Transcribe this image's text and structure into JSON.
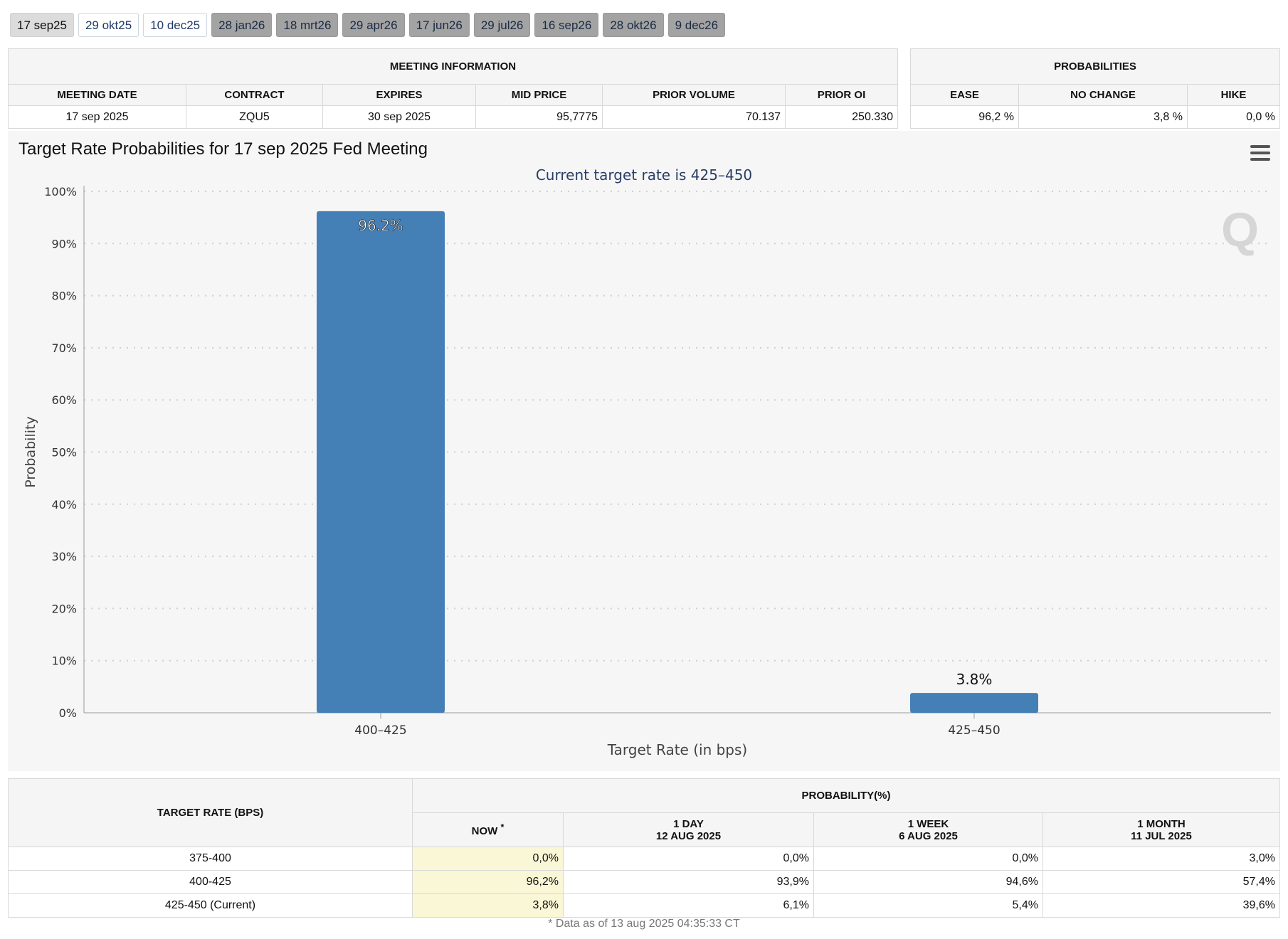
{
  "tabs": [
    {
      "label": "17 sep25",
      "style": "active"
    },
    {
      "label": "29 okt25",
      "style": "light"
    },
    {
      "label": "10 dec25",
      "style": "light"
    },
    {
      "label": "28 jan26",
      "style": "dark"
    },
    {
      "label": "18 mrt26",
      "style": "dark"
    },
    {
      "label": "29 apr26",
      "style": "dark"
    },
    {
      "label": "17 jun26",
      "style": "dark"
    },
    {
      "label": "29 jul26",
      "style": "dark"
    },
    {
      "label": "16 sep26",
      "style": "dark"
    },
    {
      "label": "28 okt26",
      "style": "dark"
    },
    {
      "label": "9 dec26",
      "style": "dark"
    }
  ],
  "meeting_info": {
    "title": "MEETING INFORMATION",
    "columns": [
      "MEETING DATE",
      "CONTRACT",
      "EXPIRES",
      "MID PRICE",
      "PRIOR VOLUME",
      "PRIOR OI"
    ],
    "values": [
      "17 sep 2025",
      "ZQU5",
      "30 sep 2025",
      "95,7775",
      "70.137",
      "250.330"
    ]
  },
  "probabilities": {
    "title": "PROBABILITIES",
    "columns": [
      "EASE",
      "NO CHANGE",
      "HIKE"
    ],
    "values": [
      "96,2 %",
      "3,8 %",
      "0,0 %"
    ]
  },
  "chart_title": "Target Rate Probabilities for 17 sep 2025 Fed Meeting",
  "chart_data": {
    "type": "bar",
    "title": "Target Rate Probabilities for 17 sep 2025 Fed Meeting",
    "subtitle": "Current target rate is 425–450",
    "xlabel": "Target Rate (in bps)",
    "ylabel": "Probability",
    "categories": [
      "400–425",
      "425–450"
    ],
    "values": [
      96.2,
      3.8
    ],
    "data_labels": [
      "96.2%",
      "3.8%"
    ],
    "ylim": [
      0,
      100
    ],
    "yticks": [
      "0%",
      "10%",
      "20%",
      "30%",
      "40%",
      "50%",
      "60%",
      "70%",
      "80%",
      "90%",
      "100%"
    ],
    "grid": true,
    "bar_color": "#447fb6"
  },
  "bottom_table": {
    "rate_header": "TARGET RATE (BPS)",
    "prob_header": "PROBABILITY(%)",
    "columns": [
      {
        "line1": "NOW",
        "line2": ""
      },
      {
        "line1": "1 DAY",
        "line2": "12 AUG 2025"
      },
      {
        "line1": "1 WEEK",
        "line2": "6 AUG 2025"
      },
      {
        "line1": "1 MONTH",
        "line2": "11 JUL 2025"
      }
    ],
    "now_mark": "*",
    "rows": [
      {
        "rate": "375-400",
        "values": [
          "0,0%",
          "0,0%",
          "0,0%",
          "3,0%"
        ]
      },
      {
        "rate": "400-425",
        "values": [
          "96,2%",
          "93,9%",
          "94,6%",
          "57,4%"
        ]
      },
      {
        "rate": "425-450 (Current)",
        "values": [
          "3,8%",
          "6,1%",
          "5,4%",
          "39,6%"
        ]
      }
    ]
  },
  "footnote": "* Data as of 13 aug 2025 04:35:33 CT"
}
